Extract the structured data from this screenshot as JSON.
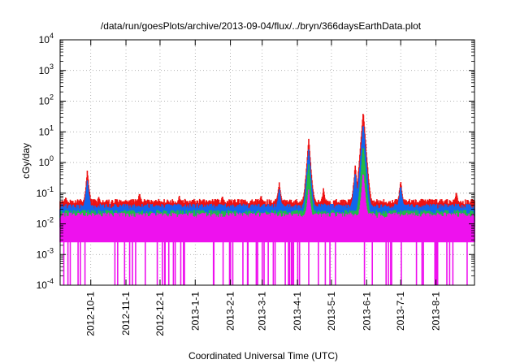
{
  "chart_data": {
    "type": "area",
    "title": "/data/run/goesPlots/archive/2013-09-04/flux/../bryn/366daysEarthData.plot",
    "xlabel": "Coordinated Universal Time (UTC)",
    "ylabel": "cGy/day",
    "y_scale": "log",
    "ylim": [
      0.0001,
      10000
    ],
    "y_ticks": [
      {
        "value": 0.0001,
        "base": "10",
        "exp": "-4"
      },
      {
        "value": 0.001,
        "base": "10",
        "exp": "-3"
      },
      {
        "value": 0.01,
        "base": "10",
        "exp": "-2"
      },
      {
        "value": 0.1,
        "base": "10",
        "exp": "-1"
      },
      {
        "value": 1,
        "base": "10",
        "exp": "0"
      },
      {
        "value": 10,
        "base": "10",
        "exp": "1"
      },
      {
        "value": 100,
        "base": "10",
        "exp": "2"
      },
      {
        "value": 1000,
        "base": "10",
        "exp": "3"
      },
      {
        "value": 10000,
        "base": "10",
        "exp": "4"
      }
    ],
    "xlim": [
      "2012-09-04",
      "2013-09-04"
    ],
    "x_ticks": [
      "2012-10-1",
      "2012-11-1",
      "2012-12-1",
      "2013-1-1",
      "2013-2-1",
      "2013-3-1",
      "2013-4-1",
      "2013-5-1",
      "2013-6-1",
      "2013-7-1",
      "2013-8-1"
    ],
    "grid": true,
    "legend": "none",
    "series_colors": [
      "#ee1111",
      "#1166ee",
      "#22bb44",
      "#ee11ee"
    ],
    "series": [
      {
        "color": "#ee1111",
        "baseline": 0.05,
        "x": [
          "2012-09-09",
          "2012-09-28",
          "2012-10-08",
          "2012-11-13",
          "2012-12-18",
          "2013-01-25",
          "2013-02-28",
          "2013-03-16",
          "2013-04-11",
          "2013-04-24",
          "2013-05-22",
          "2013-05-29",
          "2013-07-01",
          "2013-08-19"
        ],
        "values": [
          0.08,
          0.6,
          0.08,
          0.12,
          0.09,
          0.09,
          0.1,
          0.25,
          6.0,
          0.15,
          0.9,
          50,
          0.3,
          0.12
        ]
      },
      {
        "color": "#1166ee",
        "baseline": 0.035,
        "x": [
          "2012-09-28",
          "2013-03-16",
          "2013-04-11",
          "2013-05-22",
          "2013-05-29",
          "2013-07-01"
        ],
        "values": [
          0.3,
          0.15,
          3.0,
          0.5,
          20,
          0.2
        ]
      },
      {
        "color": "#22bb44",
        "baseline": 0.022,
        "x": [
          "2013-04-11",
          "2013-05-29"
        ],
        "values": [
          1.0,
          4.0
        ]
      },
      {
        "color": "#ee11ee",
        "baseline": 0.018,
        "floor": 0.0025,
        "x": [
          "2013-04-11",
          "2013-05-29"
        ],
        "values": [
          0.15,
          0.5
        ]
      }
    ]
  }
}
